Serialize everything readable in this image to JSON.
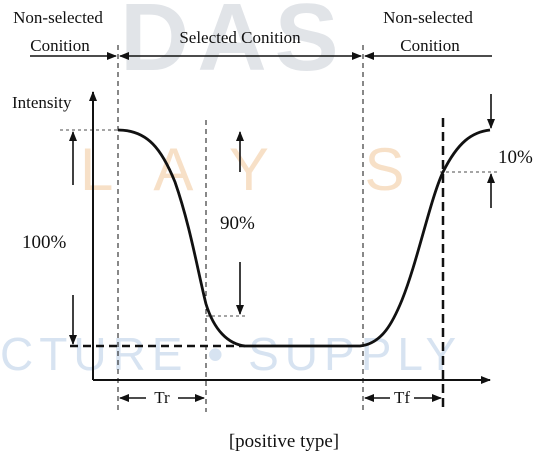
{
  "watermark": {
    "top_text": "DAS",
    "middle_text": "LAY S",
    "bottom_text": "CTURE • SUPPLY",
    "colors": {
      "grey": "#c9ced6",
      "orange": "#f2c79a",
      "blue": "#b7cde6"
    }
  },
  "labels": {
    "left_condition_line1": "Non-selected",
    "left_condition_line2": "Conition",
    "middle_condition": "Selected Conition",
    "right_condition_line1": "Non-selected",
    "right_condition_line2": "Conition",
    "y_axis": "Intensity",
    "hundred_percent": "100%",
    "ninety_percent": "90%",
    "ten_percent": "10%",
    "tr": "Tr",
    "tf": "Tf",
    "caption": "[positive type]"
  }
}
